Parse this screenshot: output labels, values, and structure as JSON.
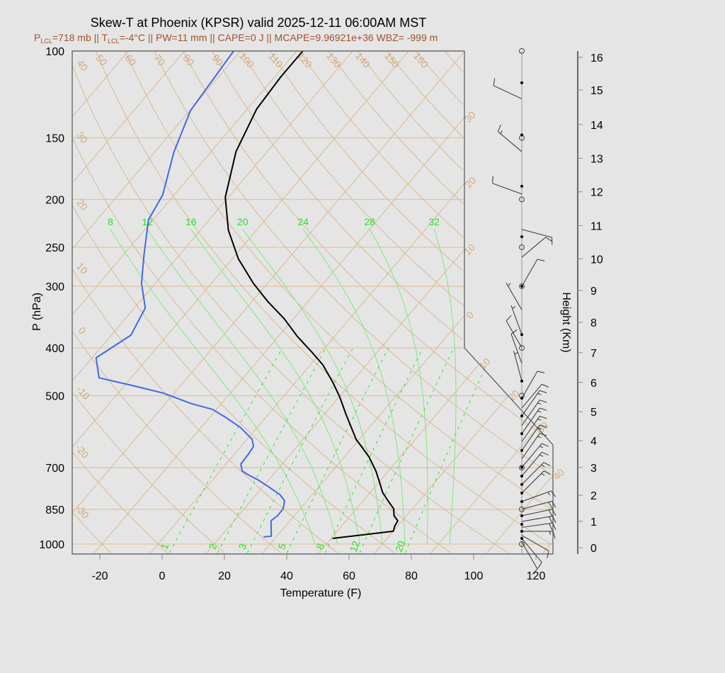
{
  "chart_data": {
    "type": "skewt",
    "title": "Skew-T at Phoenix (KPSR) valid 2025-12-11 06:00AM MST",
    "subtitle": {
      "p": "P",
      "lcl1": "LCL",
      "part1": "=718 mb || T",
      "lcl2": "LCL",
      "part2": "=-4°C || PW=11 mm || CAPE=0 J || MCAPE=9.96921e+36 WBZ= -999 m"
    },
    "xlabel": "Temperature (F)",
    "ylabel": "P (hPa)",
    "y2label": "Height (Km)",
    "x_ticks": [
      -20,
      0,
      20,
      40,
      60,
      80,
      100,
      120
    ],
    "p_ticks": [
      100,
      150,
      200,
      250,
      300,
      400,
      500,
      700,
      850,
      1000
    ],
    "height_axis": [
      {
        "km": 0,
        "p": 1017
      },
      {
        "km": 1,
        "p": 899
      },
      {
        "km": 2,
        "p": 796
      },
      {
        "km": 3,
        "p": 699
      },
      {
        "km": 4,
        "p": 617
      },
      {
        "km": 5,
        "p": 539
      },
      {
        "km": 6,
        "p": 470
      },
      {
        "km": 7,
        "p": 409
      },
      {
        "km": 8,
        "p": 355
      },
      {
        "km": 9,
        "p": 306
      },
      {
        "km": 10,
        "p": 264
      },
      {
        "km": 11,
        "p": 226
      },
      {
        "km": 12,
        "p": 193
      },
      {
        "km": 13,
        "p": 165
      },
      {
        "km": 14,
        "p": 141
      },
      {
        "km": 15,
        "p": 120
      },
      {
        "km": 16,
        "p": 103
      }
    ],
    "isotherm_labels": [
      {
        "t_c": -30,
        "text": "30"
      },
      {
        "t_c": -20,
        "text": "20"
      },
      {
        "t_c": -10,
        "text": "10"
      },
      {
        "t_c": 0,
        "text": "0"
      },
      {
        "t_c": 10,
        "text": "10"
      },
      {
        "t_c": 20,
        "text": "20"
      },
      {
        "t_c": 30,
        "text": "30"
      },
      {
        "t_c": 40,
        "text": "40"
      }
    ],
    "dry_adiabat_labels_c": [
      -30,
      -20,
      -10,
      0,
      10,
      20,
      30,
      40,
      50,
      60,
      70,
      80,
      90,
      100,
      110,
      120,
      130,
      140,
      150,
      160
    ],
    "moist_adiabat_labels_c": [
      8,
      12,
      16,
      20,
      24,
      28,
      32
    ],
    "mixing_ratio_labels_gkg": [
      1,
      2,
      3,
      5,
      8,
      12,
      20
    ],
    "temperature_profile_F": [
      [
        974,
        50.5
      ],
      [
        942,
        68
      ],
      [
        918,
        67
      ],
      [
        897,
        66.6
      ],
      [
        876,
        64
      ],
      [
        848,
        62
      ],
      [
        820,
        58.4
      ],
      [
        786,
        54
      ],
      [
        747,
        50
      ],
      [
        711,
        46
      ],
      [
        666,
        40
      ],
      [
        613,
        31
      ],
      [
        546,
        21
      ],
      [
        502,
        14
      ],
      [
        470,
        8
      ],
      [
        433,
        0
      ],
      [
        408,
        -7
      ],
      [
        379,
        -16
      ],
      [
        349,
        -25
      ],
      [
        322,
        -35
      ],
      [
        296,
        -44.5
      ],
      [
        264,
        -56
      ],
      [
        231,
        -67
      ],
      [
        198,
        -77
      ],
      [
        160,
        -86
      ],
      [
        131,
        -91
      ],
      [
        113,
        -92
      ],
      [
        100,
        -92
      ]
    ],
    "dewpoint_profile_F": [
      [
        967,
        27.9
      ],
      [
        964,
        30.2
      ],
      [
        897,
        25.9
      ],
      [
        876,
        26.6
      ],
      [
        848,
        26.5
      ],
      [
        817,
        24.8
      ],
      [
        793,
        21.5
      ],
      [
        767,
        16.2
      ],
      [
        742,
        10.8
      ],
      [
        723,
        5.9
      ],
      [
        711,
        3.1
      ],
      [
        688,
        0.7
      ],
      [
        659,
        0.5
      ],
      [
        634,
        0
      ],
      [
        613,
        -2.4
      ],
      [
        580,
        -9.4
      ],
      [
        555,
        -16.4
      ],
      [
        533,
        -23.3
      ],
      [
        519,
        -31.6
      ],
      [
        494,
        -43.6
      ],
      [
        478,
        -54.7
      ],
      [
        460,
        -68.3
      ],
      [
        419,
        -74.7
      ],
      [
        377,
        -69.7
      ],
      [
        332,
        -72.5
      ],
      [
        296,
        -80.4
      ],
      [
        259,
        -87.4
      ],
      [
        220,
        -95.5
      ],
      [
        196,
        -97.7
      ],
      [
        160,
        -105.9
      ],
      [
        132,
        -111.8
      ],
      [
        100,
        -114.2
      ]
    ],
    "colors": {
      "temperature": "#000000",
      "dewpoint": "#4169e1",
      "background_lines": "#d9b98f",
      "moist_lines": "#7de87d"
    },
    "mandatory_levels_p": [
      100,
      150,
      200,
      250,
      300,
      400,
      500,
      700,
      850,
      1000
    ],
    "significant_levels_p": [
      116,
      148,
      188,
      238,
      300,
      376,
      467,
      506,
      550,
      597,
      646,
      699,
      728,
      757,
      788,
      820,
      876,
      912,
      942,
      974
    ],
    "winds": [
      {
        "p": 125,
        "dir": 295,
        "kt": 10
      },
      {
        "p": 160,
        "dir": 310,
        "kt": 15
      },
      {
        "p": 195,
        "dir": 290,
        "kt": 10
      },
      {
        "p": 230,
        "dir": 105,
        "kt": 10
      },
      {
        "p": 262,
        "dir": 50,
        "kt": 10
      },
      {
        "p": 300,
        "dir": 30,
        "kt": 10
      },
      {
        "p": 335,
        "dir": 330,
        "kt": 5
      },
      {
        "p": 376,
        "dir": 340,
        "kt": 5
      },
      {
        "p": 400,
        "dir": 330,
        "kt": 10
      },
      {
        "p": 430,
        "dir": 340,
        "kt": 10
      },
      {
        "p": 467,
        "dir": 345,
        "kt": 5
      },
      {
        "p": 506,
        "dir": 30,
        "kt": 10
      },
      {
        "p": 530,
        "dir": 40,
        "kt": 10
      },
      {
        "p": 550,
        "dir": 35,
        "kt": 15
      },
      {
        "p": 575,
        "dir": 35,
        "kt": 15
      },
      {
        "p": 597,
        "dir": 35,
        "kt": 15
      },
      {
        "p": 620,
        "dir": 35,
        "kt": 15
      },
      {
        "p": 646,
        "dir": 35,
        "kt": 15
      },
      {
        "p": 672,
        "dir": 35,
        "kt": 15
      },
      {
        "p": 699,
        "dir": 40,
        "kt": 15
      },
      {
        "p": 728,
        "dir": 40,
        "kt": 15
      },
      {
        "p": 757,
        "dir": 45,
        "kt": 15
      },
      {
        "p": 788,
        "dir": 45,
        "kt": 15
      },
      {
        "p": 820,
        "dir": 70,
        "kt": 15
      },
      {
        "p": 850,
        "dir": 75,
        "kt": 20
      },
      {
        "p": 876,
        "dir": 78,
        "kt": 20
      },
      {
        "p": 900,
        "dir": 80,
        "kt": 20
      },
      {
        "p": 925,
        "dir": 82,
        "kt": 20
      },
      {
        "p": 942,
        "dir": 90,
        "kt": 15
      },
      {
        "p": 960,
        "dir": 120,
        "kt": 10
      },
      {
        "p": 974,
        "dir": 140,
        "kt": 10
      },
      {
        "p": 990,
        "dir": 150,
        "kt": 10
      }
    ]
  }
}
